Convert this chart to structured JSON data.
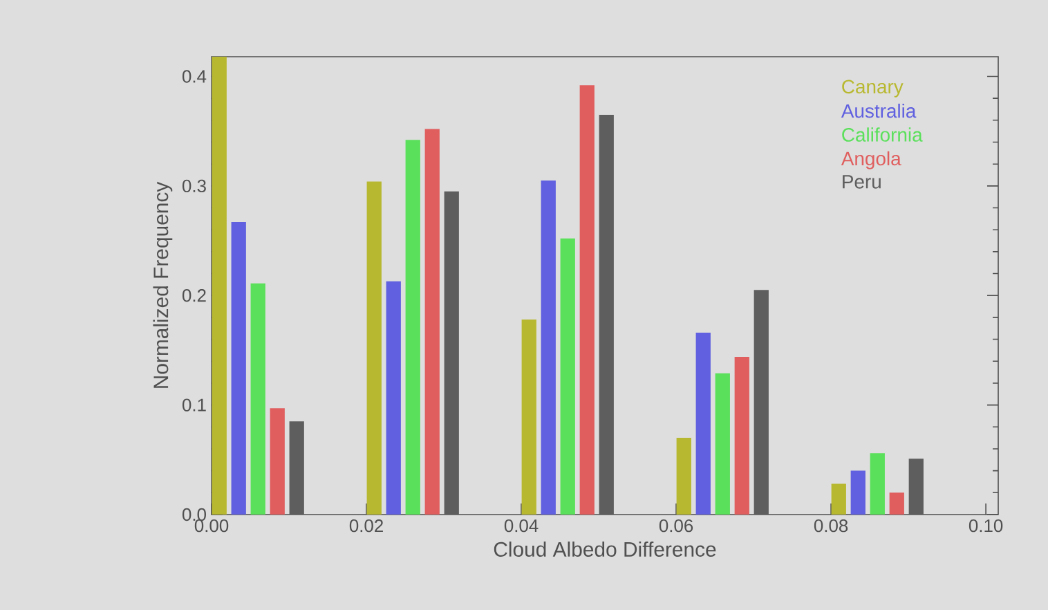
{
  "chart_data": {
    "type": "bar",
    "xlabel": "Cloud Albedo Difference",
    "ylabel": "Normalized Frequency",
    "xlim": [
      0,
      0.1016
    ],
    "ylim": [
      0,
      0.418
    ],
    "xticks": [
      {
        "value": 0,
        "label": "0.00"
      },
      {
        "value": 0.02,
        "label": "0.02"
      },
      {
        "value": 0.04,
        "label": "0.04"
      },
      {
        "value": 0.06,
        "label": "0.06"
      },
      {
        "value": 0.08,
        "label": "0.08"
      },
      {
        "value": 0.1,
        "label": "0.10"
      }
    ],
    "yticks": [
      {
        "value": 0,
        "label": "0.0"
      },
      {
        "value": 0.1,
        "label": "0.1"
      },
      {
        "value": 0.2,
        "label": "0.2"
      },
      {
        "value": 0.3,
        "label": "0.3"
      },
      {
        "value": 0.4,
        "label": "0.4"
      }
    ],
    "legend": "top right",
    "grid": false,
    "series": [
      {
        "name": "Canary",
        "color": "#b8b830",
        "x": [
          0.001,
          0.021,
          0.041,
          0.061,
          0.081
        ],
        "values": [
          0.418,
          0.304,
          0.178,
          0.07,
          0.028
        ]
      },
      {
        "name": "Australia",
        "color": "#6060e0",
        "x": [
          0.0035,
          0.0235,
          0.0435,
          0.0635,
          0.0835
        ],
        "values": [
          0.267,
          0.213,
          0.305,
          0.166,
          0.04
        ]
      },
      {
        "name": "California",
        "color": "#5ae05a",
        "x": [
          0.006,
          0.026,
          0.046,
          0.066,
          0.086
        ],
        "values": [
          0.211,
          0.342,
          0.252,
          0.129,
          0.056
        ]
      },
      {
        "name": "Angola",
        "color": "#e05e5e",
        "x": [
          0.0085,
          0.0285,
          0.0485,
          0.0685,
          0.0885
        ],
        "values": [
          0.097,
          0.352,
          0.392,
          0.144,
          0.02
        ]
      },
      {
        "name": "Peru",
        "color": "#5e5e5e",
        "x": [
          0.011,
          0.031,
          0.051,
          0.071,
          0.091
        ],
        "values": [
          0.085,
          0.295,
          0.365,
          0.205,
          0.051
        ]
      }
    ]
  }
}
